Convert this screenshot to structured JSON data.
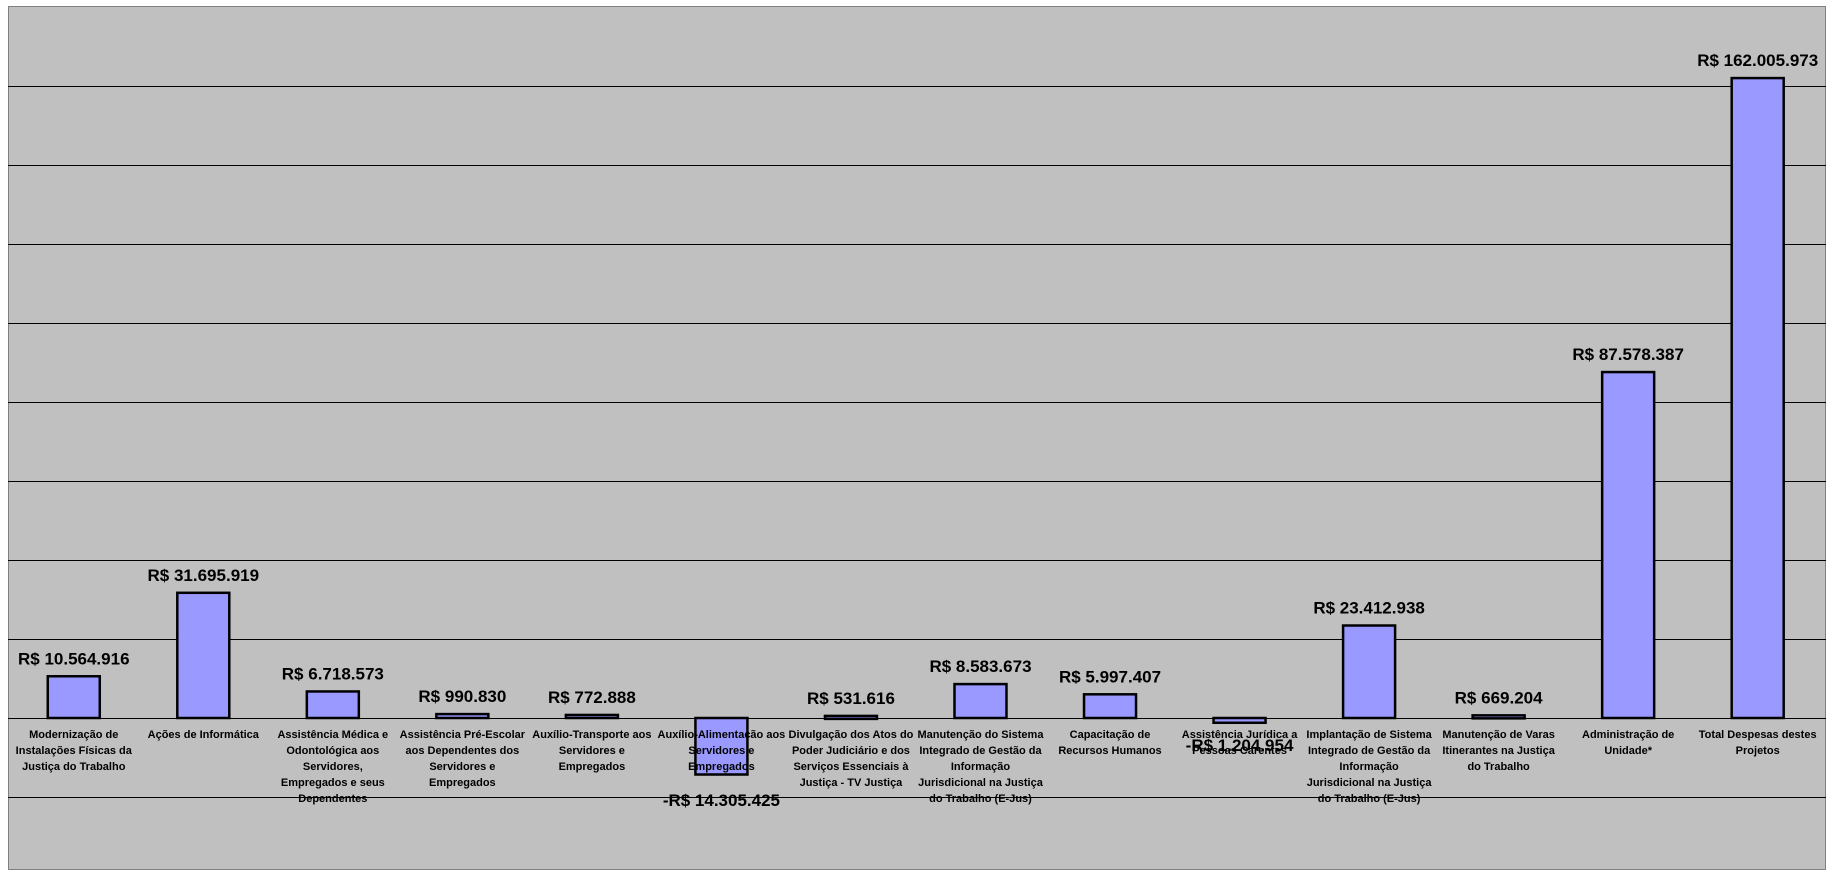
{
  "colors": {
    "plot_bg": "#c0c0c0",
    "bar_fill": "#9999ff",
    "bar_stroke": "#000000",
    "grid": "#000000"
  },
  "chart_data": {
    "type": "bar",
    "title": "",
    "xlabel": "",
    "ylabel": "",
    "ylim": [
      -20000000,
      180000000
    ],
    "grid": true,
    "categories": [
      "Modernização de Instalações Físicas da Justiça do Trabalho",
      "Ações de Informática",
      "Assistência Médica e Odontológica aos Servidores, Empregados e seus Dependentes",
      "Assistência Pré-Escolar aos Dependentes dos Servidores e Empregados",
      "Auxílio-Transporte aos Servidores e Empregados",
      "Auxílio-Alimentação aos Servidores e Empregados",
      "Divulgação dos Atos do Poder Judiciário e dos Serviços Essenciais à Justiça - TV Justiça",
      "Manutenção do Sistema Integrado de Gestão da Informação Jurisdicional na Justiça do Trabalho (E-Jus)",
      "Capacitação de Recursos Humanos",
      "Assistência Jurídica a Pessoas Carentes",
      "Implantação de Sistema Integrado de Gestão da Informação Jurisdicional na Justiça do Trabalho (E-Jus)",
      "Manutenção de Varas Itinerantes na Justiça do Trabalho",
      "Administração de Unidade*",
      "Total Despesas destes Projetos"
    ],
    "values": [
      10564916,
      31695919,
      6718573,
      990830,
      772888,
      -14305425,
      531616,
      8583673,
      5997407,
      -1204954,
      23412938,
      669204,
      87578387,
      162005973
    ],
    "data_labels": [
      "R$ 10.564.916",
      "R$ 31.695.919",
      "R$ 6.718.573",
      "R$ 990.830",
      "R$ 772.888",
      "-R$ 14.305.425",
      "R$ 531.616",
      "R$ 8.583.673",
      "R$ 5.997.407",
      "-R$ 1.204.954",
      "R$ 23.412.938",
      "R$ 669.204",
      "R$ 87.578.387",
      "R$ 162.005.973"
    ]
  }
}
